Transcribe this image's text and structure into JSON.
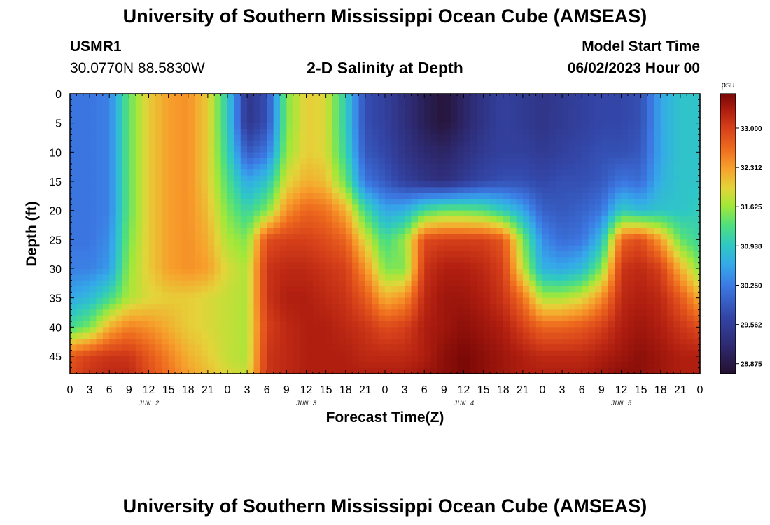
{
  "header": {
    "title": "University of Southern Mississippi Ocean Cube (AMSEAS)",
    "station_id": "USMR1",
    "coordinates": "30.0770N  88.5830W",
    "subtitle": "2-D Salinity at Depth",
    "model_start_label": "Model Start Time",
    "model_start_value": "06/02/2023 Hour 00",
    "footer_title": "University of Southern Mississippi Ocean Cube (AMSEAS)"
  },
  "chart_data": {
    "type": "heatmap",
    "title": "2-D Salinity at Depth",
    "xlabel": "Forecast Time(Z)",
    "ylabel": "Depth (ft)",
    "xlim": [
      0,
      96
    ],
    "ylim": [
      0,
      48
    ],
    "x_ticks": [
      0,
      3,
      6,
      9,
      12,
      15,
      18,
      21,
      24,
      27,
      30,
      33,
      36,
      39,
      42,
      45,
      48,
      51,
      54,
      57,
      60,
      63,
      66,
      69,
      72,
      75,
      78,
      81,
      84,
      87,
      90,
      93,
      96
    ],
    "x_tick_labels": [
      "0",
      "3",
      "6",
      "9",
      "12",
      "15",
      "18",
      "21",
      "0",
      "3",
      "6",
      "9",
      "12",
      "15",
      "18",
      "21",
      "0",
      "3",
      "6",
      "9",
      "12",
      "15",
      "18",
      "21",
      "0",
      "3",
      "6",
      "9",
      "12",
      "15",
      "18",
      "21",
      "0"
    ],
    "day_labels": [
      {
        "x": 12,
        "text": "JUN 2"
      },
      {
        "x": 36,
        "text": "JUN 3"
      },
      {
        "x": 60,
        "text": "JUN 4"
      },
      {
        "x": 84,
        "text": "JUN 5"
      }
    ],
    "y_ticks": [
      0,
      5,
      10,
      15,
      20,
      25,
      30,
      35,
      40,
      45
    ],
    "y_tick_labels": [
      "0",
      "5",
      "10",
      "15",
      "20",
      "25",
      "30",
      "35",
      "40",
      "45"
    ],
    "colorbar": {
      "unit": "psu",
      "min": 28.7,
      "max": 33.6,
      "ticks": [
        33.0,
        32.312,
        31.625,
        30.938,
        30.25,
        29.562,
        28.875
      ],
      "tick_labels": [
        "33.000",
        "32.312",
        "31.625",
        "30.938",
        "30.250",
        "29.562",
        "28.875"
      ]
    },
    "colormap": [
      {
        "v": 28.7,
        "color": "#24102e"
      },
      {
        "v": 29.2,
        "color": "#2e2a72"
      },
      {
        "v": 29.7,
        "color": "#3346a8"
      },
      {
        "v": 30.25,
        "color": "#3c7ae4"
      },
      {
        "v": 30.6,
        "color": "#35a8ea"
      },
      {
        "v": 30.95,
        "color": "#2fc8c4"
      },
      {
        "v": 31.3,
        "color": "#4fdf7e"
      },
      {
        "v": 31.65,
        "color": "#a3e838"
      },
      {
        "v": 31.95,
        "color": "#e4d43a"
      },
      {
        "v": 32.3,
        "color": "#f7a02c"
      },
      {
        "v": 32.65,
        "color": "#ee6a1e"
      },
      {
        "v": 33.0,
        "color": "#d6401a"
      },
      {
        "v": 33.3,
        "color": "#b01e10"
      },
      {
        "v": 33.6,
        "color": "#7a0806"
      }
    ],
    "grid_times": [
      0,
      3,
      6,
      9,
      12,
      15,
      18,
      21,
      24,
      27,
      30,
      33,
      36,
      39,
      42,
      45,
      48,
      51,
      54,
      57,
      60,
      63,
      66,
      69,
      72,
      75,
      78,
      81,
      84,
      87,
      90,
      93,
      96
    ],
    "grid_depths": [
      0,
      5,
      10,
      15,
      20,
      25,
      30,
      35,
      40,
      45,
      48
    ],
    "salinity_psu": [
      [
        30.2,
        30.2,
        30.3,
        31.4,
        32.0,
        32.3,
        32.4,
        32.0,
        31.0,
        29.4,
        29.8,
        31.5,
        32.0,
        31.9,
        31.0,
        29.8,
        29.6,
        29.3,
        29.0,
        28.8,
        29.1,
        29.4,
        29.6,
        29.5,
        29.4,
        29.5,
        29.6,
        29.7,
        29.7,
        29.8,
        30.6,
        30.9,
        30.9
      ],
      [
        30.2,
        30.2,
        30.3,
        31.4,
        32.0,
        32.3,
        32.4,
        32.0,
        31.0,
        29.4,
        29.8,
        31.5,
        32.0,
        31.9,
        31.0,
        29.8,
        29.6,
        29.3,
        29.0,
        28.8,
        29.1,
        29.4,
        29.6,
        29.5,
        29.4,
        29.5,
        29.6,
        29.7,
        29.7,
        29.8,
        30.6,
        30.9,
        30.9
      ],
      [
        30.2,
        30.2,
        30.3,
        31.4,
        32.0,
        32.3,
        32.4,
        32.0,
        31.1,
        29.9,
        30.2,
        31.6,
        32.0,
        31.9,
        31.1,
        29.9,
        29.7,
        29.4,
        29.2,
        29.1,
        29.3,
        29.5,
        29.6,
        29.6,
        29.5,
        29.6,
        29.7,
        29.8,
        29.8,
        29.9,
        30.6,
        30.9,
        30.9
      ],
      [
        30.2,
        30.2,
        30.3,
        31.4,
        32.0,
        32.3,
        32.4,
        32.0,
        31.3,
        30.6,
        30.9,
        31.9,
        32.2,
        32.1,
        31.4,
        30.2,
        29.9,
        29.6,
        29.4,
        29.3,
        29.5,
        29.7,
        29.8,
        29.8,
        29.7,
        29.8,
        29.8,
        29.9,
        30.2,
        30.1,
        30.7,
        30.9,
        30.9
      ],
      [
        30.2,
        30.2,
        30.3,
        31.4,
        32.0,
        32.3,
        32.4,
        32.1,
        31.5,
        31.1,
        31.5,
        32.4,
        32.7,
        32.6,
        32.2,
        31.2,
        30.6,
        30.7,
        31.2,
        31.4,
        31.4,
        31.3,
        31.0,
        30.6,
        30.0,
        29.9,
        30.0,
        30.2,
        31.0,
        30.8,
        30.9,
        30.9,
        31.0
      ],
      [
        30.2,
        30.2,
        30.4,
        31.5,
        32.0,
        32.3,
        32.4,
        32.2,
        31.7,
        31.5,
        32.9,
        33.0,
        33.0,
        32.9,
        32.7,
        31.9,
        31.2,
        31.6,
        32.9,
        33.0,
        33.0,
        33.0,
        32.8,
        31.5,
        30.4,
        30.1,
        30.2,
        30.8,
        32.7,
        32.9,
        32.3,
        31.4,
        31.1
      ],
      [
        30.3,
        30.3,
        30.5,
        31.6,
        32.0,
        32.3,
        32.4,
        32.3,
        31.9,
        31.7,
        33.1,
        33.2,
        33.2,
        33.1,
        33.0,
        32.4,
        31.5,
        31.5,
        33.1,
        33.3,
        33.3,
        33.2,
        33.0,
        31.8,
        30.7,
        30.6,
        30.8,
        31.5,
        33.1,
        33.2,
        33.0,
        32.2,
        31.5
      ],
      [
        30.6,
        30.8,
        31.2,
        31.7,
        31.9,
        32.0,
        32.0,
        31.9,
        31.8,
        31.7,
        33.1,
        33.3,
        33.3,
        33.2,
        33.1,
        32.8,
        32.2,
        32.4,
        33.2,
        33.4,
        33.4,
        33.3,
        33.1,
        32.6,
        31.7,
        31.7,
        31.9,
        32.4,
        33.2,
        33.3,
        33.2,
        32.8,
        32.2
      ],
      [
        31.2,
        31.5,
        32.2,
        32.5,
        32.4,
        32.2,
        32.0,
        31.9,
        31.8,
        31.7,
        33.0,
        33.2,
        33.3,
        33.3,
        33.2,
        33.1,
        32.9,
        33.0,
        33.3,
        33.4,
        33.5,
        33.4,
        33.3,
        33.0,
        32.7,
        32.7,
        32.8,
        33.0,
        33.3,
        33.4,
        33.3,
        33.1,
        32.9
      ],
      [
        32.8,
        33.0,
        33.1,
        33.1,
        32.8,
        32.5,
        32.2,
        32.0,
        31.8,
        31.7,
        33.1,
        33.2,
        33.3,
        33.3,
        33.3,
        33.2,
        33.2,
        33.2,
        33.3,
        33.5,
        33.6,
        33.5,
        33.4,
        33.3,
        33.2,
        33.2,
        33.2,
        33.3,
        33.4,
        33.5,
        33.4,
        33.3,
        33.3
      ],
      [
        32.9,
        33.1,
        33.2,
        33.2,
        32.9,
        32.6,
        32.3,
        32.1,
        31.9,
        31.8,
        33.1,
        33.2,
        33.3,
        33.3,
        33.3,
        33.3,
        33.3,
        33.3,
        33.4,
        33.5,
        33.6,
        33.5,
        33.4,
        33.3,
        33.3,
        33.3,
        33.3,
        33.4,
        33.5,
        33.5,
        33.4,
        33.3,
        33.3
      ]
    ]
  }
}
